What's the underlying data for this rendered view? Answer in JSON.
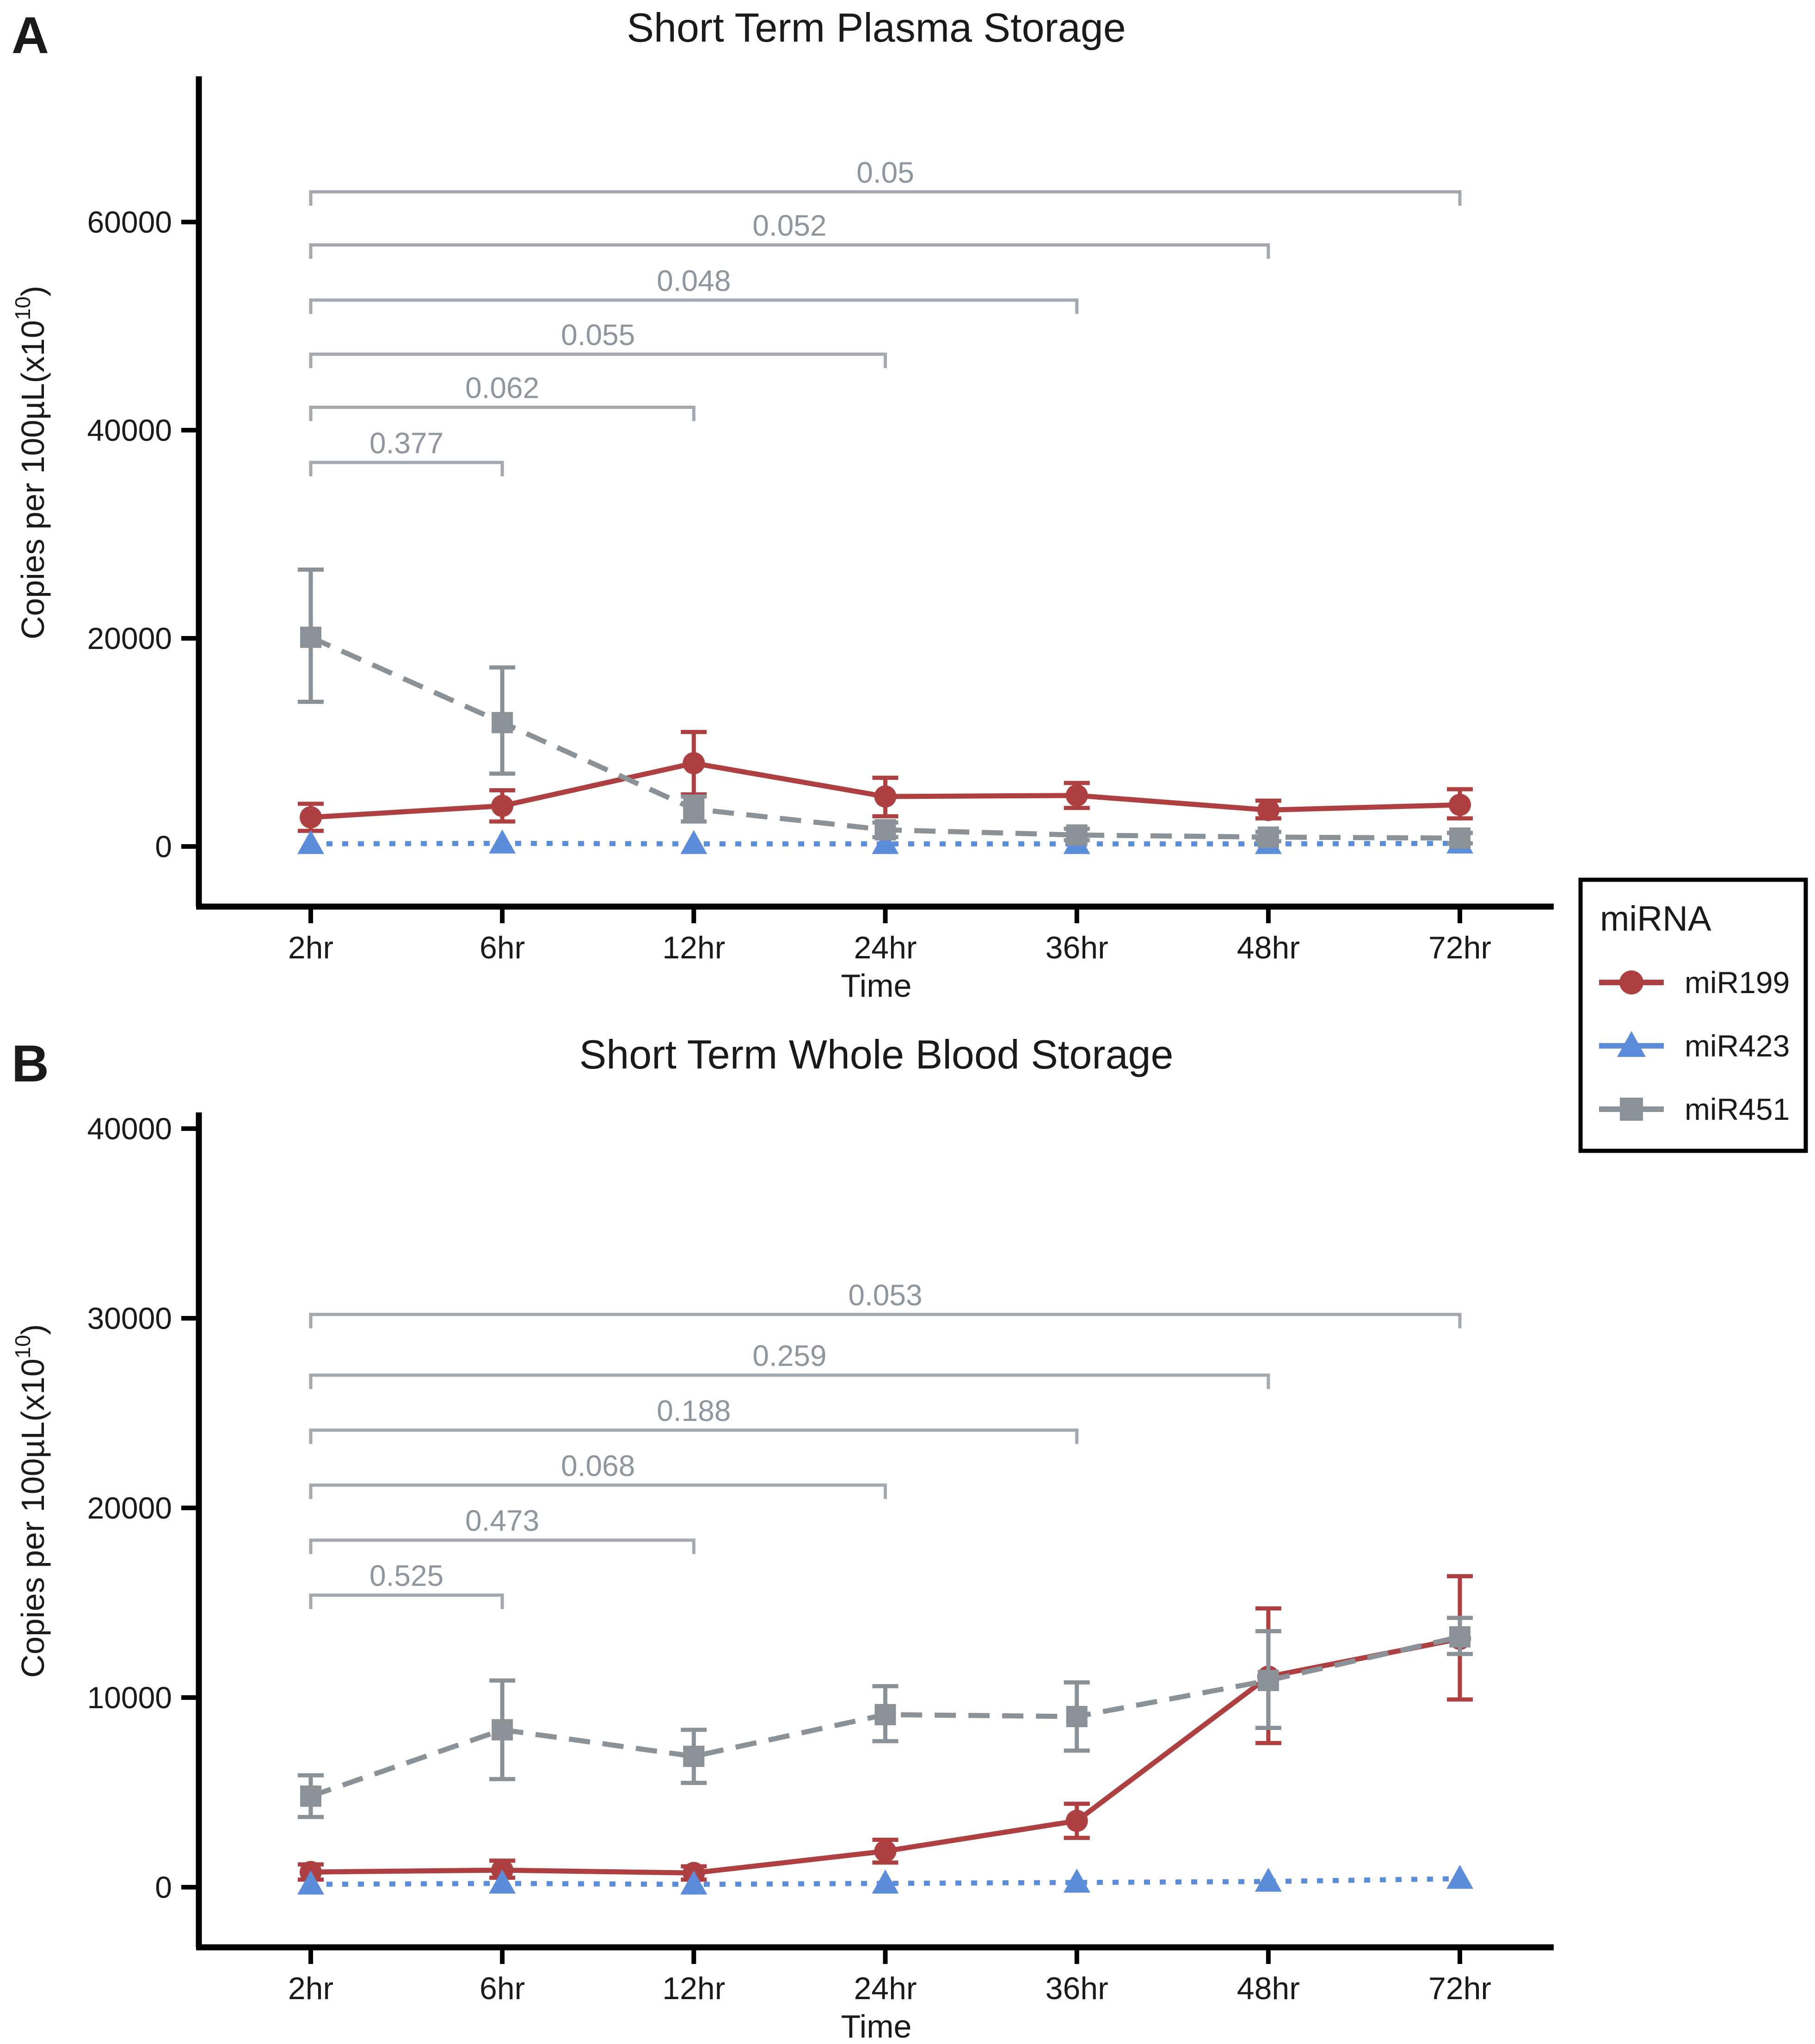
{
  "figure": {
    "panels": [
      {
        "letter": "A",
        "title": "Short Term Plasma Storage",
        "xlabel": "Time",
        "ylabel": "Copies per 100µL(x10^10)",
        "categories": [
          "2hr",
          "6hr",
          "12hr",
          "24hr",
          "36hr",
          "48hr",
          "72hr"
        ],
        "yticks": [
          0,
          20000,
          40000,
          60000
        ],
        "ylim": [
          0,
          73000
        ],
        "series": [
          {
            "name": "miR199",
            "marker": "circle",
            "line": "solid",
            "values": [
              2800,
              3900,
              8000,
              4800,
              4900,
              3500,
              4000
            ],
            "err_lo": [
              1500,
              2400,
              5000,
              2900,
              3700,
              2700,
              2700
            ],
            "err_hi": [
              4100,
              5400,
              11000,
              6600,
              6100,
              4400,
              5500
            ]
          },
          {
            "name": "miR423",
            "marker": "triangle",
            "line": "dotted",
            "values": [
              250,
              300,
              250,
              250,
              250,
              250,
              300
            ],
            "err_lo": [
              250,
              300,
              250,
              250,
              250,
              250,
              300
            ],
            "err_hi": [
              250,
              300,
              250,
              250,
              250,
              250,
              300
            ]
          },
          {
            "name": "miR451",
            "marker": "square",
            "line": "dashed",
            "values": [
              20100,
              11900,
              3600,
              1600,
              1100,
              900,
              800
            ],
            "err_lo": [
              13900,
              7000,
              2400,
              900,
              600,
              500,
              300
            ],
            "err_hi": [
              26600,
              17200,
              4800,
              2300,
              1700,
              1400,
              1300
            ]
          }
        ],
        "significance_brackets": [
          {
            "label": "0.05",
            "from": "2hr",
            "to": "72hr",
            "value": 62900
          },
          {
            "label": "0.052",
            "from": "2hr",
            "to": "48hr",
            "value": 57800
          },
          {
            "label": "0.048",
            "from": "2hr",
            "to": "36hr",
            "value": 52500
          },
          {
            "label": "0.055",
            "from": "2hr",
            "to": "24hr",
            "value": 47300
          },
          {
            "label": "0.062",
            "from": "2hr",
            "to": "12hr",
            "value": 42200
          },
          {
            "label": "0.377",
            "from": "2hr",
            "to": "6hr",
            "value": 36900
          }
        ],
        "grid": false
      },
      {
        "letter": "B",
        "title": "Short Term Whole Blood Storage",
        "xlabel": "Time",
        "ylabel": "Copies per 100µL(x10^10)",
        "categories": [
          "2hr",
          "6hr",
          "12hr",
          "24hr",
          "36hr",
          "48hr",
          "72hr"
        ],
        "yticks": [
          0,
          10000,
          20000,
          30000,
          40000
        ],
        "ylim": [
          0,
          41500
        ],
        "series": [
          {
            "name": "miR199",
            "marker": "circle",
            "line": "solid",
            "values": [
              800,
              900,
              750,
              1900,
              3500,
              11100,
              13100
            ],
            "err_lo": [
              400,
              500,
              400,
              1300,
              2600,
              7600,
              9900
            ],
            "err_hi": [
              1200,
              1400,
              1100,
              2500,
              4400,
              14700,
              16400
            ]
          },
          {
            "name": "miR423",
            "marker": "triangle",
            "line": "dotted",
            "values": [
              150,
              200,
              150,
              200,
              250,
              300,
              450
            ],
            "err_lo": [
              150,
              200,
              150,
              200,
              250,
              300,
              450
            ],
            "err_hi": [
              150,
              200,
              150,
              200,
              250,
              300,
              450
            ]
          },
          {
            "name": "miR451",
            "marker": "square",
            "line": "dashed",
            "values": [
              4800,
              8300,
              6900,
              9100,
              9000,
              10900,
              13200
            ],
            "err_lo": [
              3700,
              5700,
              5500,
              7700,
              7200,
              8400,
              12300
            ],
            "err_hi": [
              5900,
              10900,
              8300,
              10600,
              10800,
              13500,
              14200
            ]
          }
        ],
        "significance_brackets": [
          {
            "label": "0.053",
            "from": "2hr",
            "to": "72hr",
            "value": 30200
          },
          {
            "label": "0.259",
            "from": "2hr",
            "to": "48hr",
            "value": 27000
          },
          {
            "label": "0.188",
            "from": "2hr",
            "to": "36hr",
            "value": 24100
          },
          {
            "label": "0.068",
            "from": "2hr",
            "to": "24hr",
            "value": 21200
          },
          {
            "label": "0.473",
            "from": "2hr",
            "to": "12hr",
            "value": 18300
          },
          {
            "label": "0.525",
            "from": "2hr",
            "to": "6hr",
            "value": 15400
          }
        ],
        "grid": false
      }
    ],
    "legend": {
      "title": "miRNA",
      "entries": [
        {
          "label": "miR199",
          "series": "miR199"
        },
        {
          "label": "miR423",
          "series": "miR423"
        },
        {
          "label": "miR451",
          "series": "miR451"
        }
      ],
      "position": "right-middle"
    }
  },
  "chart_data": [
    {
      "type": "line",
      "title": "Short Term Plasma Storage",
      "xlabel": "Time",
      "ylabel": "Copies per 100µL(x10^10)",
      "x": [
        "2hr",
        "6hr",
        "12hr",
        "24hr",
        "36hr",
        "48hr",
        "72hr"
      ],
      "ylim": [
        0,
        73000
      ],
      "series": [
        {
          "name": "miR199",
          "values": [
            2800,
            3900,
            8000,
            4800,
            4900,
            3500,
            4000
          ]
        },
        {
          "name": "miR423",
          "values": [
            250,
            300,
            250,
            250,
            250,
            250,
            300
          ]
        },
        {
          "name": "miR451",
          "values": [
            20100,
            11900,
            3600,
            1600,
            1100,
            900,
            800
          ]
        }
      ],
      "p_values": [
        "0.05",
        "0.052",
        "0.048",
        "0.055",
        "0.062",
        "0.377"
      ],
      "legend_position": "right"
    },
    {
      "type": "line",
      "title": "Short Term Whole Blood Storage",
      "xlabel": "Time",
      "ylabel": "Copies per 100µL(x10^10)",
      "x": [
        "2hr",
        "6hr",
        "12hr",
        "24hr",
        "36hr",
        "48hr",
        "72hr"
      ],
      "ylim": [
        0,
        41500
      ],
      "series": [
        {
          "name": "miR199",
          "values": [
            800,
            900,
            750,
            1900,
            3500,
            11100,
            13100
          ]
        },
        {
          "name": "miR423",
          "values": [
            150,
            200,
            150,
            200,
            250,
            300,
            450
          ]
        },
        {
          "name": "miR451",
          "values": [
            4800,
            8300,
            6900,
            9100,
            9000,
            10900,
            13200
          ]
        }
      ],
      "p_values": [
        "0.053",
        "0.259",
        "0.188",
        "0.068",
        "0.473",
        "0.525"
      ],
      "legend_position": "right"
    }
  ],
  "colors": {
    "miR199": "#AF4041",
    "miR423": "#5C8DDA",
    "miR451": "#8A9197",
    "bracket_line": "#A3A9AF",
    "bracket_text": "#8F969D",
    "axis": "#000000",
    "text": "#1A1A1A",
    "background": "#FFFFFF"
  }
}
